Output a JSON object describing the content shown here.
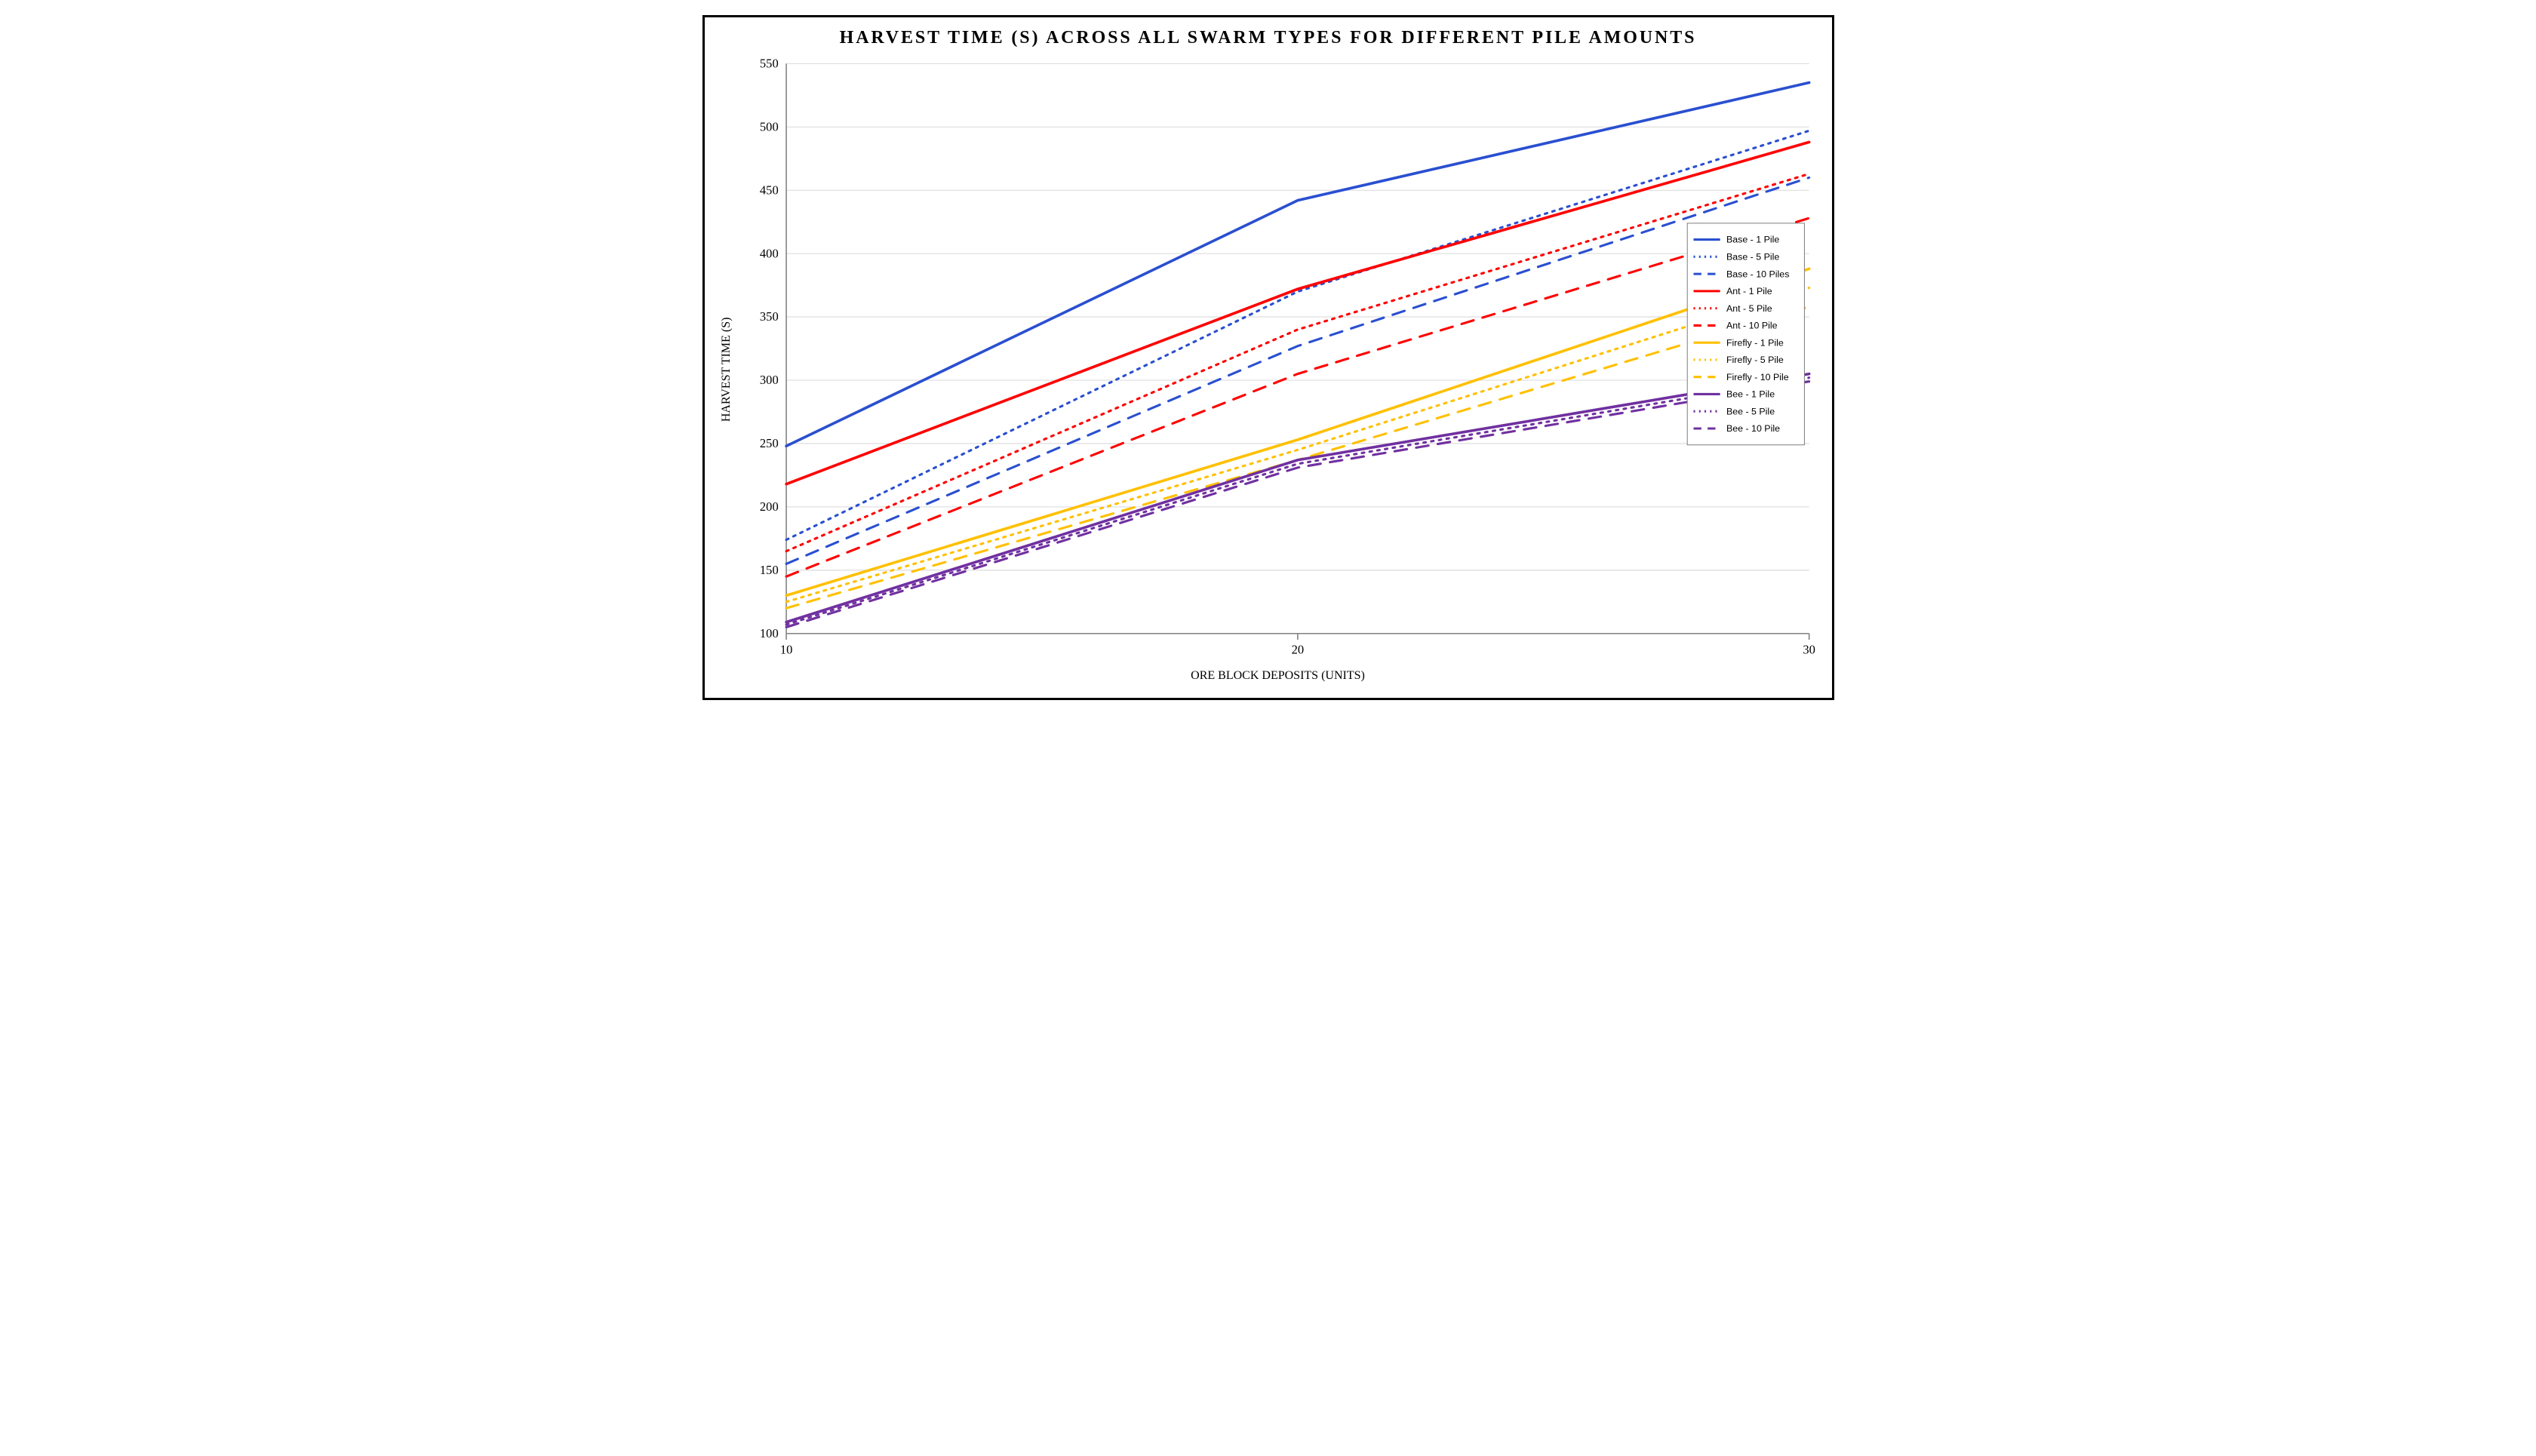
{
  "chart": {
    "type": "line",
    "title": "HARVEST TIME (S) ACROSS ALL SWARM TYPES FOR DIFFERENT PILE AMOUNTS",
    "title_fontsize": 24,
    "x_label": "ORE BLOCK DEPOSITS (UNITS)",
    "y_label": "HARVEST TIME (S)",
    "label_fontsize": 16,
    "tick_fontsize": 16,
    "x_values": [
      10,
      20,
      30
    ],
    "x_ticks": [
      10,
      20,
      30
    ],
    "y_min": 100,
    "y_max": 550,
    "y_tick_step": 50,
    "grid_color": "#d9d9d9",
    "axis_color": "#808080",
    "background_color": "#ffffff",
    "frame_border_color": "#000000",
    "line_width_thick": 3.5,
    "line_width_med": 3,
    "legend": {
      "border_color": "#808080",
      "background_color": "#ffffff",
      "fontsize": 12,
      "position": "right-middle"
    },
    "series": [
      {
        "name": "Base - 1 Pile",
        "color": "#2a4fd0",
        "dash": "solid",
        "y": [
          248,
          442,
          535
        ]
      },
      {
        "name": "Base - 5 Pile",
        "color": "#2a4fd0",
        "dash": "dotted",
        "y": [
          174,
          370,
          497
        ]
      },
      {
        "name": "Base - 10 Piles",
        "color": "#2a4fd0",
        "dash": "dashed",
        "y": [
          155,
          327,
          460
        ]
      },
      {
        "name": "Ant - 1 Pile",
        "color": "#ff0000",
        "dash": "solid",
        "y": [
          218,
          372,
          488
        ]
      },
      {
        "name": "Ant - 5 Pile",
        "color": "#ff0000",
        "dash": "dotted",
        "y": [
          165,
          340,
          463
        ]
      },
      {
        "name": "Ant - 10 Pile",
        "color": "#ff0000",
        "dash": "dashed",
        "y": [
          145,
          305,
          428
        ]
      },
      {
        "name": "Firefly - 1 Pile",
        "color": "#ffc000",
        "dash": "solid",
        "y": [
          130,
          253,
          388
        ]
      },
      {
        "name": "Firefly - 5 Pile",
        "color": "#ffc000",
        "dash": "dotted",
        "y": [
          125,
          245,
          373
        ]
      },
      {
        "name": "Firefly - 10 Pile",
        "color": "#ffc000",
        "dash": "dashed",
        "y": [
          120,
          237,
          358
        ]
      },
      {
        "name": "Bee - 1 Pile",
        "color": "#7030a0",
        "dash": "solid",
        "y": [
          109,
          237,
          305
        ]
      },
      {
        "name": "Bee - 5 Pile",
        "color": "#7030a0",
        "dash": "dotted",
        "y": [
          107,
          234,
          302
        ]
      },
      {
        "name": "Bee - 10 Pile",
        "color": "#7030a0",
        "dash": "dashed",
        "y": [
          105,
          231,
          299
        ]
      }
    ]
  }
}
